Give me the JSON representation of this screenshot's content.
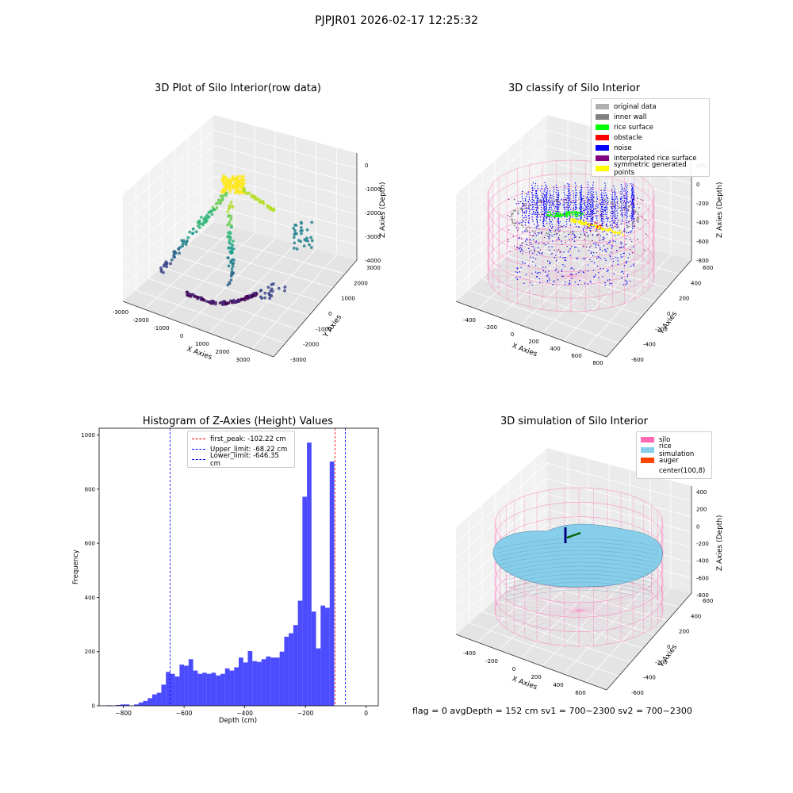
{
  "figure": {
    "suptitle": "PJPJR01 2026-02-17 12:25:32",
    "footer": "flag = 0     avgDepth = 152 cm  sv1 = 700~2300  sv2 = 700~2300"
  },
  "panels": {
    "raw": {
      "title": "3D Plot of Silo Interior(row data)",
      "xlabel": "X Axies",
      "ylabel": "Y Axies",
      "zlabel": "Z Axies (Depth)",
      "xticks": [
        "-3000",
        "-2000",
        "-1000",
        "0",
        "1000",
        "2000",
        "3000",
        "4000"
      ],
      "yticks": [
        "-3000",
        "-2000",
        "-1000",
        "0",
        "1000",
        "2000",
        "3000"
      ],
      "zticks": [
        "0",
        "-1000",
        "-2000",
        "-3000",
        "-4000"
      ]
    },
    "classify": {
      "title": "3D classify of Silo Interior",
      "xlabel": "X Axies",
      "ylabel": "Y Axies",
      "zlabel": "Z Axies (Depth)",
      "xticks": [
        "-400",
        "-200",
        "0",
        "200",
        "400",
        "600",
        "800"
      ],
      "yticks": [
        "-600",
        "-400",
        "-200",
        "0",
        "200",
        "400",
        "600"
      ],
      "zticks": [
        "200",
        "0",
        "-200",
        "-400",
        "-600",
        "-800"
      ],
      "legend": [
        {
          "label": "original data",
          "color": "#b0b0b0"
        },
        {
          "label": "inner wall",
          "color": "#808080"
        },
        {
          "label": "rice surface",
          "color": "#00ff00"
        },
        {
          "label": "obstacle",
          "color": "#ff0000"
        },
        {
          "label": "noise",
          "color": "#0000ff"
        },
        {
          "label": "interpolated rice surface",
          "color": "#800080"
        },
        {
          "label": "symmetric generated points",
          "color": "#ffff00"
        }
      ]
    },
    "simulation": {
      "title": "3D simulation of Silo Interior",
      "xlabel": "X Axies",
      "ylabel": "Y Axies",
      "zlabel": "Z Axies (Depth)",
      "xticks": [
        "-400",
        "-200",
        "0",
        "200",
        "400",
        "600"
      ],
      "yticks": [
        "-600",
        "-400",
        "-200",
        "0",
        "200",
        "400",
        "600"
      ],
      "zticks": [
        "400",
        "200",
        "0",
        "-200",
        "-400",
        "-600",
        "-800"
      ],
      "legend": [
        {
          "label": "silo",
          "color": "#ff69b4"
        },
        {
          "label": "rice simulation",
          "color": "#87ceeb"
        },
        {
          "label": "auger",
          "color": "#ff4500"
        },
        {
          "label": "center(100,8)",
          "color": "#ffffff"
        }
      ]
    }
  },
  "chart_data": {
    "type": "bar",
    "title": "Histogram of Z-Axies (Height) Values",
    "xlabel": "Depth (cm)",
    "ylabel": "Frequency",
    "xlim": [
      -880,
      40
    ],
    "ylim": [
      0,
      1025
    ],
    "xticks": [
      -800,
      -600,
      -400,
      -200,
      0
    ],
    "yticks": [
      0,
      200,
      400,
      600,
      800,
      1000
    ],
    "bar_color": "#0000ff",
    "bin_start": -855,
    "bin_width": 15,
    "values": [
      2,
      0,
      3,
      5,
      5,
      0,
      5,
      12,
      18,
      28,
      42,
      48,
      78,
      125,
      118,
      108,
      152,
      148,
      172,
      130,
      118,
      122,
      118,
      122,
      112,
      118,
      138,
      130,
      142,
      178,
      160,
      202,
      165,
      162,
      172,
      182,
      178,
      178,
      200,
      255,
      268,
      298,
      388,
      772,
      972,
      348,
      212,
      370,
      362,
      902
    ],
    "vlines": [
      {
        "label": "first_peak: -102.22 cm",
        "x": -102.22,
        "color": "#ff0000"
      },
      {
        "label": "Upper_limit: -68.22 cm",
        "x": -68.22,
        "color": "#0000ff"
      },
      {
        "label": "Lower_limit: -646.35 cm",
        "x": -646.35,
        "color": "#0000ff"
      }
    ],
    "legend_position": "top-left"
  }
}
